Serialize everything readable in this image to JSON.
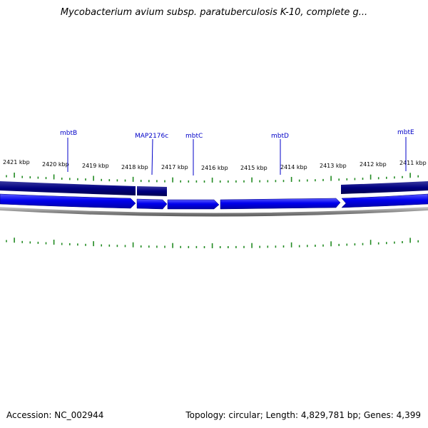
{
  "title": "Mycobacterium avium subsp. paratuberculosis K-10, complete g...",
  "footer": {
    "accession": "Accession: NC_002944",
    "stats": "Topology: circular; Length: 4,829,781 bp; Genes: 4,399"
  },
  "map": {
    "kbp_labels": [
      "2421 kbp",
      "2420 kbp",
      "2419 kbp",
      "2418 kbp",
      "2417 kbp",
      "2416 kbp",
      "2415 kbp",
      "2414 kbp",
      "2413 kbp",
      "2412 kbp",
      "2411 kbp"
    ],
    "genes": [
      {
        "name": "mbtB",
        "color": "#0000c8"
      },
      {
        "name": "MAP2176c",
        "color": "#0000c8"
      },
      {
        "name": "mbtC",
        "color": "#0000c8"
      },
      {
        "name": "mbtD",
        "color": "#0000c8"
      },
      {
        "name": "mbtE",
        "color": "#0000c8"
      }
    ],
    "colors": {
      "tick": "#228b22",
      "outer_track": "#000080",
      "gene_arrow": "#0000ee",
      "backbone": "#8a8a8a"
    }
  }
}
